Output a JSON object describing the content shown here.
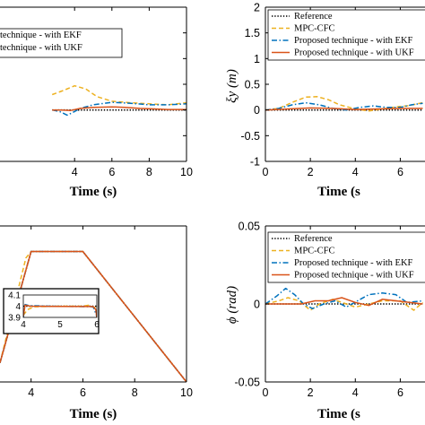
{
  "colors": {
    "reference": "#000000",
    "mpc_cfc": "#EDB120",
    "ekf": "#0072BD",
    "ukf": "#D95319"
  },
  "chart_data": [
    {
      "type": "line",
      "id": "xi_x",
      "xlabel": "Time (s)",
      "ylabel": "",
      "xlim": [
        0,
        10
      ],
      "ylim": [
        -1,
        2
      ],
      "xticks": [
        "4",
        "6",
        "8",
        "10"
      ],
      "yticks": [],
      "grid": false,
      "legend": {
        "placement": "top-left",
        "entries": [
          "technique - with EKF",
          "technique - with UKF"
        ]
      },
      "series": [
        {
          "name": "Reference",
          "style": "dotted",
          "x": [
            2.8,
            4,
            6,
            8,
            10
          ],
          "y": [
            0,
            0,
            0,
            0,
            0
          ]
        },
        {
          "name": "MPC-CFC",
          "style": "dashed",
          "x": [
            2.8,
            3.4,
            4,
            4.6,
            5.2,
            6,
            7,
            8,
            9,
            10
          ],
          "y": [
            0.3,
            0.38,
            0.47,
            0.41,
            0.26,
            0.17,
            0.14,
            0.12,
            0.1,
            0.14
          ]
        },
        {
          "name": "technique - with EKF",
          "style": "dashdot",
          "x": [
            2.8,
            3.2,
            3.6,
            3.9,
            4.3,
            5,
            6,
            7,
            8,
            9,
            10
          ],
          "y": [
            0.0,
            -0.03,
            -0.1,
            -0.05,
            0.03,
            0.1,
            0.15,
            0.13,
            0.1,
            0.1,
            0.12
          ]
        },
        {
          "name": "technique - with UKF",
          "style": "solid",
          "x": [
            2.8,
            3.3,
            3.8,
            4.3,
            5,
            6,
            6.7,
            7.5,
            8.3,
            9,
            10
          ],
          "y": [
            0.0,
            0.0,
            -0.01,
            0.03,
            0.05,
            0.06,
            0.05,
            0.03,
            0.02,
            0.01,
            0.01
          ]
        }
      ]
    },
    {
      "type": "line",
      "id": "xi_y",
      "xlabel": "Time (s",
      "ylabel": "ξy (m)",
      "xlim": [
        0,
        10
      ],
      "ylim": [
        -1,
        2
      ],
      "xticks": [
        "0",
        "2",
        "4",
        "6"
      ],
      "yticks": [
        "-1",
        "-0.5",
        "0",
        "0.5",
        "1",
        "1.5",
        "2"
      ],
      "grid": false,
      "legend": {
        "placement": "top-right",
        "entries": [
          "Reference",
          "MPC-CFC",
          "Proposed technique - with EKF",
          "Proposed technique - with UKF"
        ]
      },
      "series": [
        {
          "name": "Reference",
          "style": "dotted",
          "x": [
            0,
            2,
            4,
            6,
            7
          ],
          "y": [
            0,
            0,
            0,
            0,
            0
          ]
        },
        {
          "name": "MPC-CFC",
          "style": "dashed",
          "x": [
            0,
            0.6,
            1.2,
            1.8,
            2.3,
            2.8,
            3.3,
            4,
            4.6,
            5.2,
            5.8,
            6.3,
            7
          ],
          "y": [
            0,
            0.03,
            0.15,
            0.25,
            0.26,
            0.2,
            0.1,
            0.02,
            -0.02,
            0.02,
            0.06,
            0.08,
            0.14
          ]
        },
        {
          "name": "Proposed technique - with EKF",
          "style": "dashdot",
          "x": [
            0,
            0.6,
            1.2,
            1.8,
            2.4,
            3,
            3.6,
            4.2,
            4.8,
            5.4,
            6,
            6.5,
            7
          ],
          "y": [
            0,
            0.03,
            0.1,
            0.14,
            0.1,
            0.03,
            0.0,
            0.05,
            0.08,
            0.05,
            0.05,
            0.1,
            0.13
          ]
        },
        {
          "name": "Proposed technique - with UKF",
          "style": "solid",
          "x": [
            0,
            1,
            2,
            3,
            4,
            5,
            6,
            7
          ],
          "y": [
            0,
            0.02,
            0.04,
            0.03,
            0.01,
            0.02,
            0.03,
            0.03
          ]
        }
      ]
    },
    {
      "type": "line",
      "id": "trapezoid",
      "xlabel": "Time (s)",
      "ylabel": "",
      "xlim": [
        2.8,
        10
      ],
      "xticks": [
        "4",
        "6",
        "8",
        "10"
      ],
      "yticks": [],
      "grid": false,
      "legend": null,
      "series": [
        {
          "name": "Reference",
          "style": "dotted",
          "x": [
            2.8,
            4,
            6,
            10
          ],
          "y": [
            0.13,
            1,
            1,
            -0.02
          ]
        },
        {
          "name": "MPC-CFC",
          "style": "dashed",
          "x": [
            2.8,
            3.8,
            4,
            6,
            10
          ],
          "y": [
            0.13,
            0.95,
            1,
            1,
            -0.02
          ]
        },
        {
          "name": "EKF",
          "style": "dashdot",
          "x": [
            2.8,
            4,
            6,
            10
          ],
          "y": [
            0.13,
            1,
            1,
            -0.02
          ]
        },
        {
          "name": "UKF",
          "style": "solid",
          "x": [
            2.8,
            4,
            6,
            10
          ],
          "y": [
            0.13,
            1,
            1,
            -0.02
          ]
        }
      ],
      "inset": {
        "xlim": [
          4,
          6
        ],
        "ylim": [
          3.9,
          4.1
        ],
        "xticks": [
          "4",
          "5",
          "6"
        ],
        "yticks": [
          "3.9",
          "4",
          "4.1"
        ],
        "series": [
          {
            "name": "Reference",
            "style": "dotted",
            "x": [
              4,
              6
            ],
            "y": [
              4,
              4
            ]
          },
          {
            "name": "MPC-CFC",
            "style": "dashed",
            "x": [
              4.0,
              4.12,
              4.3,
              5.0,
              5.6,
              5.8,
              5.9,
              6.0
            ],
            "y": [
              3.92,
              3.97,
              3.995,
              4.0,
              4.0,
              4.01,
              3.99,
              3.99
            ]
          },
          {
            "name": "EKF",
            "style": "dashdot",
            "x": [
              4.0,
              4.05,
              4.15,
              5.0,
              5.9,
              6.0
            ],
            "y": [
              3.9,
              4.015,
              4.005,
              3.998,
              3.995,
              3.91
            ]
          },
          {
            "name": "UKF",
            "style": "solid",
            "x": [
              4.0,
              4.05,
              4.2,
              5.0,
              5.9,
              5.97,
              6.0
            ],
            "y": [
              3.91,
              4.01,
              4.0,
              3.998,
              3.997,
              3.97,
              3.9
            ]
          }
        ]
      }
    },
    {
      "type": "line",
      "id": "phi",
      "xlabel": "Time (s",
      "ylabel": "ϕ (rad)",
      "xlim": [
        0,
        10
      ],
      "ylim": [
        -0.05,
        0.05
      ],
      "xticks": [
        "0",
        "2",
        "4",
        "6"
      ],
      "yticks": [
        "-0.05",
        "0",
        "0.05"
      ],
      "grid": false,
      "legend": {
        "placement": "top-right",
        "entries": [
          "Reference",
          "MPC-CFC",
          "Proposed technique - with EKF",
          "Proposed technique - with UKF"
        ]
      },
      "series": [
        {
          "name": "Reference",
          "style": "dotted",
          "x": [
            0,
            2,
            4,
            6,
            7
          ],
          "y": [
            0,
            0,
            0,
            0,
            0
          ]
        },
        {
          "name": "MPC-CFC",
          "style": "dashed",
          "x": [
            0,
            0.6,
            1,
            1.5,
            2,
            2.4,
            3,
            3.6,
            4,
            4.6,
            5.2,
            6,
            6.6,
            7
          ],
          "y": [
            0,
            0.002,
            0.004,
            0.002,
            -0.004,
            0.0,
            0.003,
            0.0,
            -0.002,
            0.0,
            0.002,
            0.002,
            -0.004,
            0.001
          ]
        },
        {
          "name": "Proposed technique - with EKF",
          "style": "dashdot",
          "x": [
            0,
            0.5,
            0.9,
            1.3,
            1.7,
            2.1,
            2.6,
            3.1,
            3.6,
            4.1,
            4.6,
            5.2,
            5.8,
            6.3,
            7
          ],
          "y": [
            0,
            0.005,
            0.01,
            0.006,
            0.0,
            -0.003,
            0.0,
            0.002,
            -0.002,
            0.002,
            0.006,
            0.007,
            0.006,
            0.001,
            0.002
          ]
        },
        {
          "name": "Proposed technique - with UKF",
          "style": "solid",
          "x": [
            0,
            0.8,
            1.6,
            2.2,
            2.8,
            3.4,
            4,
            4.6,
            5.2,
            5.8,
            6.4,
            7
          ],
          "y": [
            0,
            0.0,
            0.0,
            0.002,
            0.002,
            0.004,
            0.001,
            -0.001,
            0.003,
            0.002,
            0.001,
            0.0
          ]
        }
      ]
    }
  ]
}
